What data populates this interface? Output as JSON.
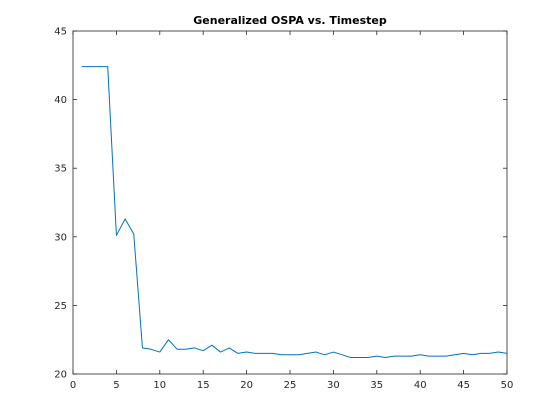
{
  "chart_data": {
    "type": "line",
    "title": "Generalized OSPA vs. Timestep",
    "xlabel": "",
    "ylabel": "",
    "xlim": [
      0,
      50
    ],
    "ylim": [
      20,
      45
    ],
    "xticks": [
      0,
      5,
      10,
      15,
      20,
      25,
      30,
      35,
      40,
      45,
      50
    ],
    "yticks": [
      20,
      25,
      30,
      35,
      40,
      45
    ],
    "grid": false,
    "legend": "none",
    "series": [
      {
        "color": "#0072bd",
        "x": [
          1,
          2,
          3,
          4,
          5,
          6,
          7,
          8,
          9,
          10,
          11,
          12,
          13,
          14,
          15,
          16,
          17,
          18,
          19,
          20,
          21,
          22,
          23,
          24,
          25,
          26,
          27,
          28,
          29,
          30,
          31,
          32,
          33,
          34,
          35,
          36,
          37,
          38,
          39,
          40,
          41,
          42,
          43,
          44,
          45,
          46,
          47,
          48,
          49,
          50
        ],
        "y": [
          42.4,
          42.4,
          42.4,
          42.4,
          30.1,
          31.3,
          30.2,
          21.9,
          21.8,
          21.6,
          22.5,
          21.8,
          21.8,
          21.9,
          21.7,
          22.1,
          21.6,
          21.9,
          21.5,
          21.6,
          21.5,
          21.5,
          21.5,
          21.4,
          21.4,
          21.4,
          21.5,
          21.6,
          21.4,
          21.6,
          21.4,
          21.2,
          21.2,
          21.2,
          21.3,
          21.2,
          21.3,
          21.3,
          21.3,
          21.4,
          21.3,
          21.3,
          21.3,
          21.4,
          21.5,
          21.4,
          21.5,
          21.5,
          21.6,
          21.5
        ]
      }
    ]
  }
}
